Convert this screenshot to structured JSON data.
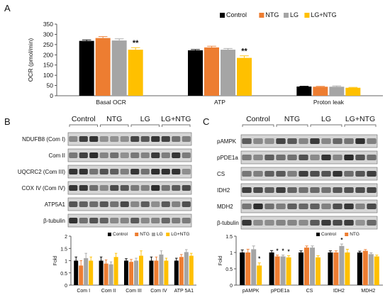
{
  "panels": {
    "a": "A",
    "b": "B",
    "c": "C"
  },
  "colors": {
    "Control": "#000000",
    "NTG": "#ED7D31",
    "LG": "#A5A5A5",
    "LG+NTG": "#FFC000"
  },
  "chart_data": [
    {
      "type": "bar",
      "panel": "A",
      "categories": [
        "Basal OCR",
        "ATP",
        "Proton leak"
      ],
      "series": [
        {
          "name": "Control",
          "values": [
            268,
            222,
            45
          ],
          "errors": [
            5,
            4,
            2
          ]
        },
        {
          "name": "NTG",
          "values": [
            282,
            236,
            44
          ],
          "errors": [
            7,
            6,
            2
          ]
        },
        {
          "name": "LG",
          "values": [
            270,
            225,
            44
          ],
          "errors": [
            8,
            6,
            4
          ]
        },
        {
          "name": "LG+NTG",
          "values": [
            225,
            185,
            39
          ],
          "errors": [
            10,
            10,
            2
          ]
        }
      ],
      "significance": [
        {
          "category": "Basal OCR",
          "series": "LG+NTG",
          "mark": "**"
        },
        {
          "category": "ATP",
          "series": "LG+NTG",
          "mark": "**"
        }
      ],
      "ylabel": "OCR (pmol/min)",
      "ylim": [
        0,
        350
      ],
      "yticks": [
        0,
        50,
        100,
        150,
        200,
        250,
        300,
        350
      ],
      "legend": "top-right",
      "grid": false
    },
    {
      "type": "bar",
      "panel": "B",
      "categories": [
        "Com I",
        "Com II",
        "Com III",
        "Com IV",
        "ATP 5A1"
      ],
      "series": [
        {
          "name": "Control",
          "values": [
            1.0,
            1.0,
            1.0,
            1.0,
            1.0
          ],
          "errors": [
            0.15,
            0.15,
            0.08,
            0.15,
            0.1
          ]
        },
        {
          "name": "NTG",
          "values": [
            0.8,
            0.88,
            0.95,
            1.0,
            1.15
          ],
          "errors": [
            0.2,
            0.15,
            0.1,
            0.15,
            0.1
          ]
        },
        {
          "name": "LG",
          "values": [
            1.1,
            0.85,
            1.0,
            1.25,
            1.35
          ],
          "errors": [
            0.2,
            0.1,
            0.1,
            0.15,
            0.1
          ]
        },
        {
          "name": "LG+NTG",
          "values": [
            1.0,
            1.15,
            1.2,
            1.0,
            1.2
          ],
          "errors": [
            0.15,
            0.15,
            0.2,
            0.1,
            0.1
          ]
        }
      ],
      "ylabel": "Fold",
      "ylim": [
        0,
        2
      ],
      "yticks": [
        0,
        0.5,
        1,
        1.5,
        2
      ],
      "legend": "top-right",
      "grid": false
    },
    {
      "type": "bar",
      "panel": "C",
      "categories": [
        "pAMPK",
        "pPDE1a",
        "CS",
        "IDH2",
        "MDH2"
      ],
      "series": [
        {
          "name": "Control",
          "values": [
            1.0,
            1.0,
            1.0,
            1.0,
            1.0
          ],
          "errors": [
            0.08,
            0.06,
            0.05,
            0.05,
            0.04
          ]
        },
        {
          "name": "NTG",
          "values": [
            1.0,
            0.88,
            1.15,
            1.0,
            1.05
          ],
          "errors": [
            0.1,
            0.04,
            0.05,
            0.05,
            0.04
          ]
        },
        {
          "name": "LG",
          "values": [
            1.1,
            0.88,
            1.15,
            1.2,
            0.95
          ],
          "errors": [
            0.1,
            0.04,
            0.05,
            0.06,
            0.04
          ]
        },
        {
          "name": "LG+NTG",
          "values": [
            0.6,
            0.85,
            0.85,
            1.0,
            0.88
          ],
          "errors": [
            0.08,
            0.05,
            0.05,
            0.1,
            0.04
          ]
        }
      ],
      "significance": [
        {
          "category": "pAMPK",
          "series": "LG+NTG",
          "mark": "*"
        },
        {
          "category": "pPDE1a",
          "series": "NTG",
          "mark": "*"
        },
        {
          "category": "pPDE1a",
          "series": "LG",
          "mark": "*"
        },
        {
          "category": "pPDE1a",
          "series": "LG+NTG",
          "mark": "*"
        },
        {
          "category": "IDH2",
          "series": "LG",
          "mark": "*"
        }
      ],
      "legend_entries": [
        "Control",
        "NTG"
      ],
      "ylabel": "Fold",
      "ylim": [
        0,
        1.5
      ],
      "yticks": [
        0,
        0.5,
        1,
        1.5
      ],
      "legend": "top-right",
      "grid": false
    }
  ],
  "blots": {
    "b": {
      "groups": [
        "Control",
        "NTG",
        "LG",
        "LG+NTG"
      ],
      "rows": [
        "NDUFB8 (Com I)",
        "Com II",
        "UQCRC2 (Com III)",
        "COX IV (Com IV)",
        "ATP5A1",
        "β-tubulin"
      ]
    },
    "c": {
      "groups": [
        "Control",
        "NTG",
        "LG",
        "LG+NTG"
      ],
      "rows": [
        "pAMPK",
        "pPDE1a",
        "CS",
        "IDH2",
        "MDH2",
        "β-tubulin"
      ]
    }
  }
}
